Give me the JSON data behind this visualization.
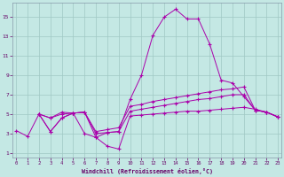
{
  "xlabel": "Windchill (Refroidissement éolien,°C)",
  "bg_color": "#c4e8e4",
  "line_color": "#aa00aa",
  "grid_color": "#a0c8c4",
  "x_ticks": [
    0,
    1,
    2,
    3,
    4,
    5,
    6,
    7,
    8,
    9,
    10,
    11,
    12,
    13,
    14,
    15,
    16,
    17,
    18,
    19,
    20,
    21,
    22,
    23
  ],
  "y_ticks": [
    1,
    3,
    5,
    7,
    9,
    11,
    13,
    15
  ],
  "xlim": [
    -0.3,
    23.3
  ],
  "ylim": [
    0.5,
    16.5
  ],
  "lines": [
    {
      "x": [
        0,
        1,
        2,
        3,
        4,
        5,
        6,
        7,
        8,
        9,
        10,
        11,
        12,
        13,
        14,
        15,
        16,
        17,
        18,
        19,
        20,
        21,
        22,
        23
      ],
      "y": [
        3.3,
        2.7,
        5.0,
        3.2,
        4.6,
        5.1,
        3.0,
        2.6,
        3.1,
        3.2,
        6.5,
        9.0,
        13.1,
        15.0,
        15.8,
        14.8,
        14.8,
        12.2,
        8.5,
        8.2,
        6.8,
        5.4,
        5.2,
        4.7
      ]
    },
    {
      "x": [
        2,
        3,
        4,
        5,
        6,
        7,
        8,
        9,
        10,
        11,
        12,
        13,
        14,
        15,
        16,
        17,
        18,
        19,
        20,
        21,
        22,
        23
      ],
      "y": [
        5.0,
        4.6,
        5.2,
        5.1,
        5.2,
        3.2,
        3.4,
        3.6,
        5.8,
        6.0,
        6.3,
        6.5,
        6.7,
        6.9,
        7.1,
        7.3,
        7.5,
        7.6,
        7.8,
        5.4,
        5.2,
        4.7
      ]
    },
    {
      "x": [
        2,
        3,
        4,
        5,
        6,
        7,
        8,
        9,
        10,
        11,
        12,
        13,
        14,
        15,
        16,
        17,
        18,
        19,
        20,
        21,
        22,
        23
      ],
      "y": [
        5.0,
        4.6,
        5.0,
        5.1,
        5.2,
        3.0,
        3.1,
        3.2,
        5.3,
        5.5,
        5.7,
        5.9,
        6.1,
        6.3,
        6.5,
        6.6,
        6.8,
        7.0,
        7.0,
        5.4,
        5.2,
        4.7
      ]
    },
    {
      "x": [
        2,
        3,
        4,
        5,
        6,
        7,
        8,
        9,
        10,
        11,
        12,
        13,
        14,
        15,
        16,
        17,
        18,
        19,
        20,
        21,
        22,
        23
      ],
      "y": [
        5.0,
        3.2,
        4.6,
        5.1,
        5.2,
        2.6,
        1.7,
        1.4,
        4.8,
        4.9,
        5.0,
        5.1,
        5.2,
        5.3,
        5.3,
        5.4,
        5.5,
        5.6,
        5.7,
        5.5,
        5.2,
        4.7
      ]
    }
  ]
}
